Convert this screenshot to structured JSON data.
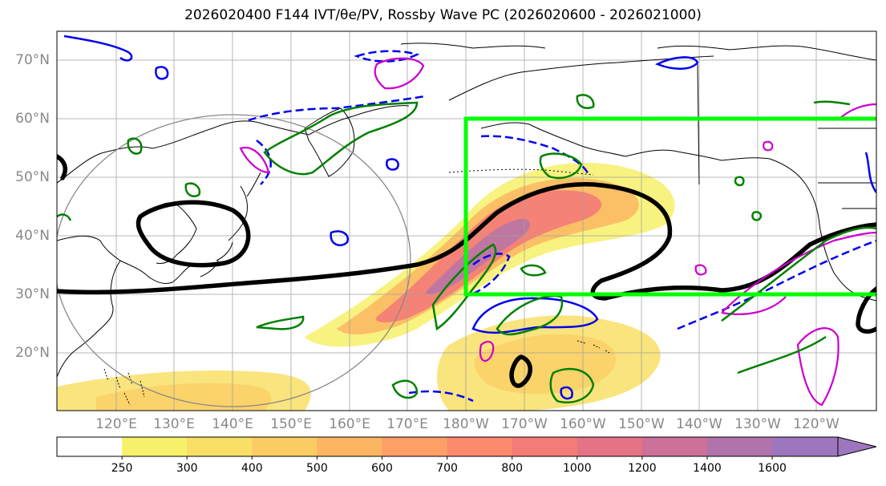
{
  "title": "2026020400 F144 IVT/θe/PV, Rossby Wave PC (2026020600 - 2026021000)",
  "lat_labels": [
    "70°N",
    "60°N",
    "50°N",
    "40°N",
    "30°N",
    "20°N"
  ],
  "lon_labels": [
    "120°E",
    "130°E",
    "140°E",
    "150°E",
    "160°E",
    "170°E",
    "180°W",
    "170°W",
    "160°W",
    "150°W",
    "140°W",
    "130°W",
    "120°W"
  ],
  "colorbar": {
    "ticks": [
      "250",
      "300",
      "400",
      "500",
      "600",
      "700",
      "800",
      "1000",
      "1200",
      "1400",
      "1600"
    ],
    "colors": [
      "#ffffff",
      "#f7f06a",
      "#f9df66",
      "#fbcc64",
      "#fcb662",
      "#fd9f66",
      "#fc8a6d",
      "#f47b78",
      "#e47386",
      "#cc7198",
      "#b173ab",
      "#9e76be"
    ]
  },
  "colors": {
    "highlight_box": "#00ff00",
    "theta_contour": "#000000",
    "pv_positive": "#0000ee",
    "pv_negative": "#cc00cc",
    "rossby_pc": "#008000",
    "coastline": "#000000",
    "grid": "#a0a0a0"
  }
}
